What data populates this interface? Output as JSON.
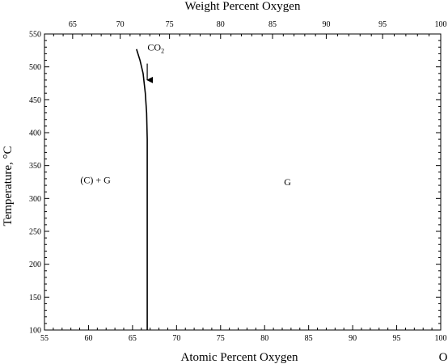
{
  "chart_data": {
    "type": "line",
    "title": "",
    "x_top_label": "Weight Percent Oxygen",
    "xlabel": "Atomic Percent Oxygen",
    "ylabel": "Temperature, °C",
    "element_label": "O",
    "xlim": [
      55,
      100
    ],
    "ylim": [
      100,
      550
    ],
    "bottom_ticks_major": [
      55,
      60,
      65,
      70,
      75,
      80,
      85,
      90,
      95,
      100
    ],
    "y_ticks_major": [
      100,
      150,
      200,
      250,
      300,
      350,
      400,
      450,
      500,
      550
    ],
    "top_ticks_major": [
      {
        "label": "65",
        "at_atomic": 58.2
      },
      {
        "label": "70",
        "at_atomic": 63.6
      },
      {
        "label": "75",
        "at_atomic": 69.2
      },
      {
        "label": "80",
        "at_atomic": 75.0
      },
      {
        "label": "85",
        "at_atomic": 80.9
      },
      {
        "label": "90",
        "at_atomic": 87.0
      },
      {
        "label": "95",
        "at_atomic": 93.4
      },
      {
        "label": "100",
        "at_atomic": 100.0
      }
    ],
    "series": [
      {
        "x": [
          66.67,
          66.67,
          66.6,
          66.45,
          66.2,
          65.85,
          65.45
        ],
        "y": [
          100,
          390,
          430,
          460,
          490,
          510,
          527
        ]
      }
    ],
    "annotations": {
      "co2": {
        "text": "CO",
        "sub": "2",
        "x": 66.7,
        "y": 525
      },
      "arrow": {
        "x": 66.67,
        "y_from": 505,
        "y_to": 480
      },
      "regions": [
        {
          "text": "(C) + G",
          "x": 60.8,
          "y": 323
        },
        {
          "text": "G",
          "x": 82.6,
          "y": 320
        }
      ]
    }
  }
}
